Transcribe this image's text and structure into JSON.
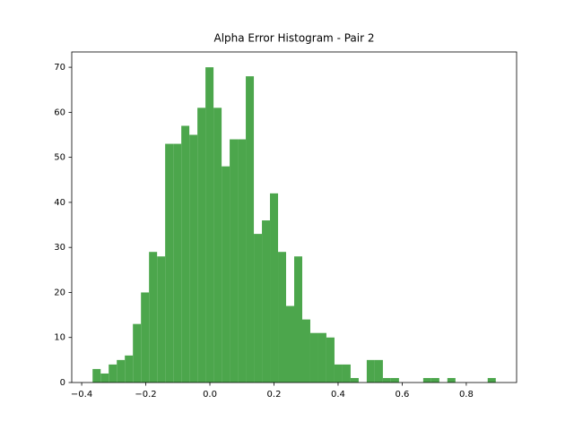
{
  "chart_data": {
    "type": "histogram",
    "title": "Alpha Error Histogram - Pair 2",
    "color": "#4ca64c",
    "bins": [
      -0.366,
      -0.3408,
      -0.3157,
      -0.2905,
      -0.2654,
      -0.2402,
      -0.215,
      -0.1899,
      -0.1647,
      -0.1396,
      -0.1144,
      -0.0892,
      -0.0641,
      -0.0389,
      -0.0138,
      0.0114,
      0.0366,
      0.0617,
      0.0869,
      0.112,
      0.1372,
      0.1624,
      0.1875,
      0.2127,
      0.2378,
      0.263,
      0.2882,
      0.3133,
      0.3385,
      0.3636,
      0.3888,
      0.414,
      0.4391,
      0.4643,
      0.4894,
      0.5146,
      0.5398,
      0.5649,
      0.5901,
      0.6152,
      0.6404,
      0.6656,
      0.6907,
      0.7159,
      0.741,
      0.7662,
      0.7914,
      0.8165,
      0.8417,
      0.8668,
      0.892
    ],
    "values": [
      3,
      2,
      4,
      5,
      6,
      13,
      20,
      29,
      28,
      53,
      53,
      57,
      55,
      61,
      70,
      61,
      48,
      54,
      54,
      68,
      33,
      36,
      42,
      29,
      17,
      28,
      14,
      11,
      11,
      10,
      4,
      4,
      1,
      0,
      5,
      5,
      1,
      1,
      0,
      0,
      0,
      1,
      1,
      0,
      1,
      0,
      0,
      0,
      0,
      1
    ],
    "xlim": [
      -0.431,
      0.957
    ],
    "ylim": [
      0,
      73.4
    ],
    "xticks": [
      {
        "value": -0.4,
        "label": "−0.4"
      },
      {
        "value": -0.2,
        "label": "−0.2"
      },
      {
        "value": 0.0,
        "label": "0.0"
      },
      0.2,
      0.4,
      0.6,
      0.8
    ],
    "yticks": [
      0,
      10,
      20,
      30,
      40,
      50,
      60,
      70
    ]
  }
}
